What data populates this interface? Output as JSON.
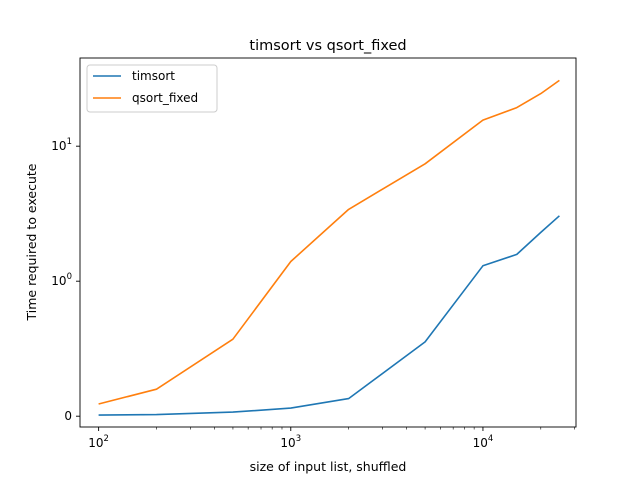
{
  "chart_data": {
    "type": "line",
    "title": "timsort vs qsort_fixed",
    "xlabel": "size of input list, shuffled",
    "ylabel": "Time required to execute",
    "x_scale": "log",
    "y_scale": "symlog",
    "xlim": [
      80,
      30500
    ],
    "ylim": [
      -0.08,
      45
    ],
    "x_ticks": [
      {
        "value": 100,
        "base": "10",
        "exp": "2"
      },
      {
        "value": 1000,
        "base": "10",
        "exp": "3"
      },
      {
        "value": 10000,
        "base": "10",
        "exp": "4"
      }
    ],
    "y_ticks": [
      {
        "value": 0,
        "label": "0"
      },
      {
        "value": 1,
        "base": "10",
        "exp": "0"
      },
      {
        "value": 10,
        "base": "10",
        "exp": "1"
      }
    ],
    "grid": false,
    "legend_position": "upper left",
    "series": [
      {
        "name": "timsort",
        "color": "#1f77b4",
        "x": [
          100,
          200,
          500,
          1000,
          2000,
          5000,
          10000,
          15000,
          20000,
          25000
        ],
        "y": [
          0.008,
          0.012,
          0.03,
          0.06,
          0.13,
          0.55,
          1.3,
          1.58,
          2.3,
          3.05
        ]
      },
      {
        "name": "qsort_fixed",
        "color": "#ff7f0e",
        "x": [
          100,
          200,
          500,
          1000,
          2000,
          5000,
          10000,
          15000,
          20000,
          25000
        ],
        "y": [
          0.09,
          0.2,
          0.57,
          1.4,
          3.4,
          7.4,
          15.6,
          19.3,
          24.5,
          30.7
        ]
      }
    ]
  }
}
